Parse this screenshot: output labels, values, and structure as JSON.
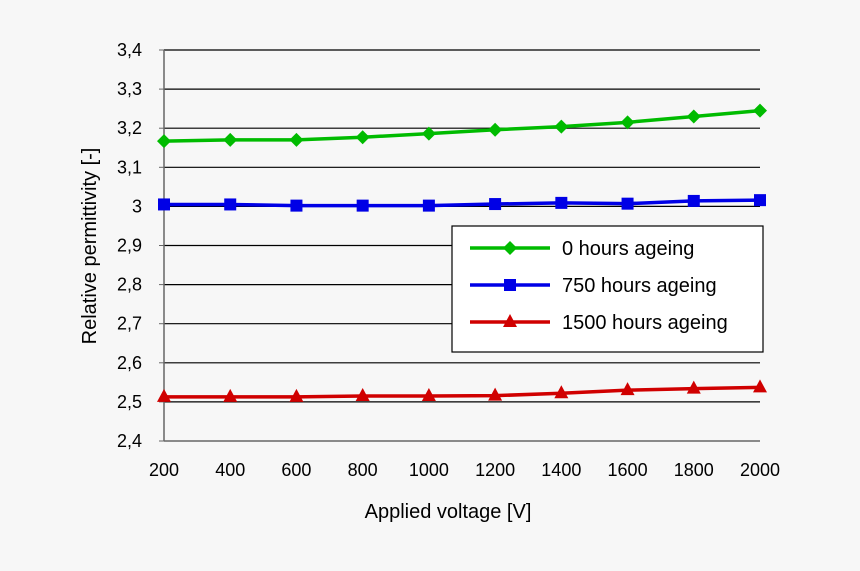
{
  "chart_data": {
    "type": "line",
    "title": "",
    "xlabel": "Applied voltage [V]",
    "ylabel": "Relative permittivity [-]",
    "x": [
      200,
      400,
      600,
      800,
      1000,
      1200,
      1400,
      1600,
      1800,
      2000
    ],
    "xlim": [
      200,
      2000
    ],
    "ylim": [
      2.4,
      3.4
    ],
    "x_ticks": [
      "200",
      "400",
      "600",
      "800",
      "1000",
      "1200",
      "1400",
      "1600",
      "1800",
      "2000"
    ],
    "y_ticks": [
      "2,4",
      "2,5",
      "2,6",
      "2,7",
      "2,8",
      "2,9",
      "3",
      "3,1",
      "3,2",
      "3,3",
      "3,4"
    ],
    "grid": "horizontal",
    "legend_position": "right",
    "series": [
      {
        "name": "0 hours ageing",
        "color": "#00bb00",
        "marker": "diamond",
        "values": [
          3.167,
          3.17,
          3.17,
          3.177,
          3.186,
          3.196,
          3.204,
          3.215,
          3.23,
          3.245
        ]
      },
      {
        "name": "750 hours ageing",
        "color": "#0000e6",
        "marker": "square",
        "values": [
          3.005,
          3.005,
          3.002,
          3.002,
          3.002,
          3.006,
          3.009,
          3.007,
          3.014,
          3.016
        ]
      },
      {
        "name": "1500 hours ageing",
        "color": "#d00000",
        "marker": "triangle",
        "values": [
          2.513,
          2.513,
          2.513,
          2.515,
          2.515,
          2.516,
          2.522,
          2.53,
          2.534,
          2.537
        ]
      }
    ]
  }
}
